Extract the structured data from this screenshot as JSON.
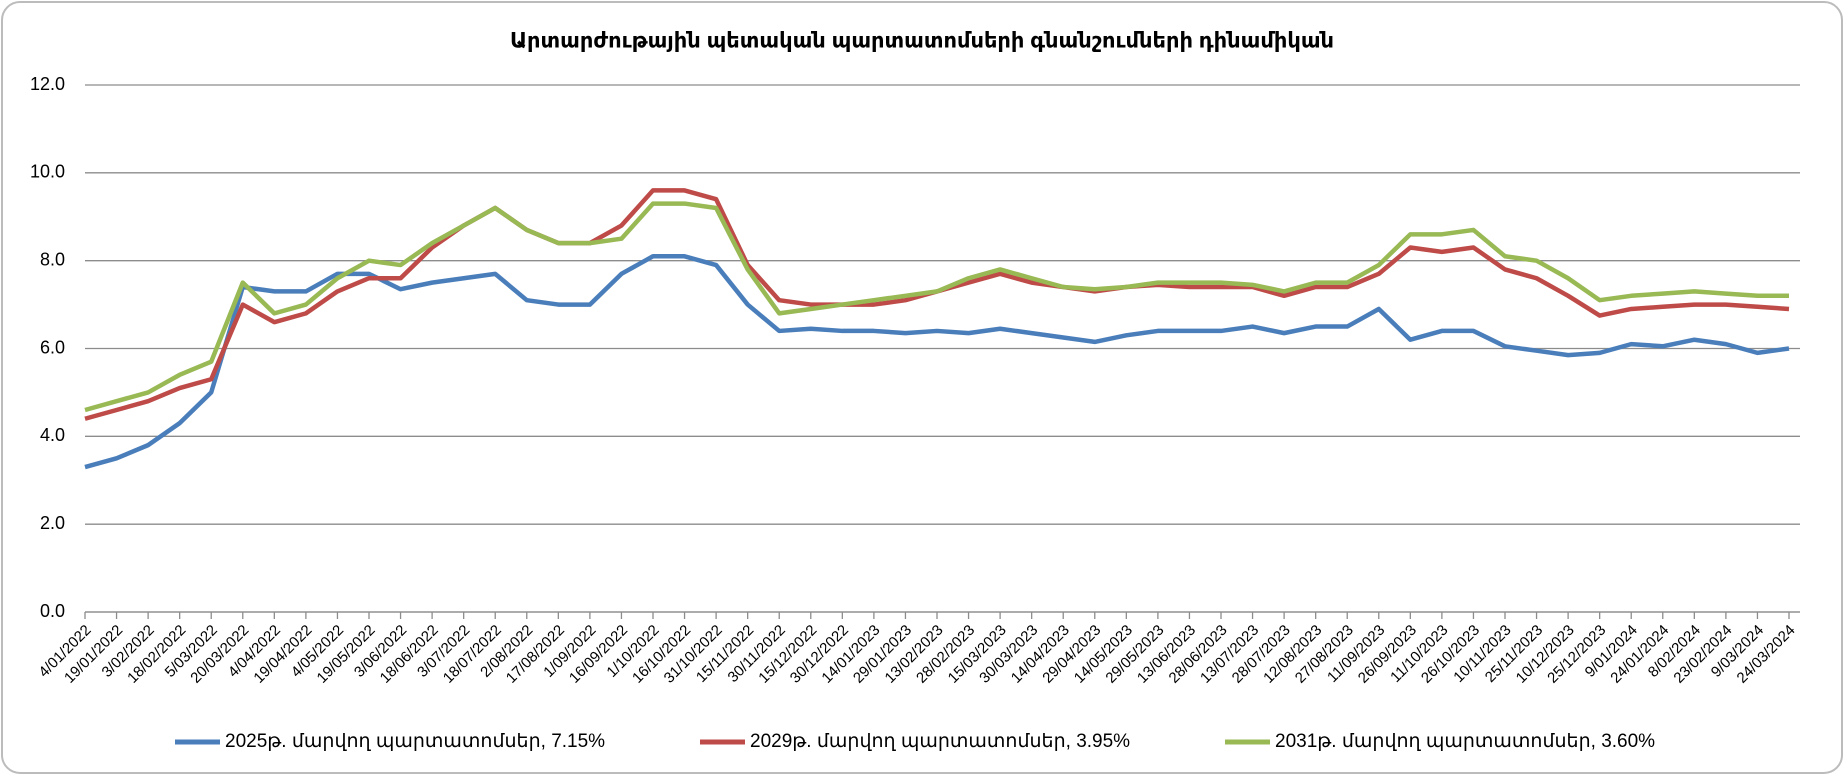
{
  "chart_data": {
    "type": "line",
    "title": "Արտարժութային պետական պարտատոմսերի գնանշումների դինամիկան",
    "categories": [
      "4/01/2022",
      "19/01/2022",
      "3/02/2022",
      "18/02/2022",
      "5/03/2022",
      "20/03/2022",
      "4/04/2022",
      "19/04/2022",
      "4/05/2022",
      "19/05/2022",
      "3/06/2022",
      "18/06/2022",
      "3/07/2022",
      "18/07/2022",
      "2/08/2022",
      "17/08/2022",
      "1/09/2022",
      "16/09/2022",
      "1/10/2022",
      "16/10/2022",
      "31/10/2022",
      "15/11/2022",
      "30/11/2022",
      "15/12/2022",
      "30/12/2022",
      "14/01/2023",
      "29/01/2023",
      "13/02/2023",
      "28/02/2023",
      "15/03/2023",
      "30/03/2023",
      "14/04/2023",
      "29/04/2023",
      "14/05/2023",
      "29/05/2023",
      "13/06/2023",
      "28/06/2023",
      "13/07/2023",
      "28/07/2023",
      "12/08/2023",
      "27/08/2023",
      "11/09/2023",
      "26/09/2023",
      "11/10/2023",
      "26/10/2023",
      "10/11/2023",
      "25/11/2023",
      "10/12/2023",
      "25/12/2023",
      "9/01/2024",
      "24/01/2024",
      "8/02/2024",
      "23/02/2024",
      "9/03/2024",
      "24/03/2024"
    ],
    "series": [
      {
        "name": "2025թ. մարվող պարտատոմսեր, 7.15%",
        "color": "#4a7ebb",
        "values": [
          3.3,
          3.5,
          3.8,
          4.3,
          5.0,
          7.4,
          7.3,
          7.3,
          7.7,
          7.7,
          7.35,
          7.5,
          7.6,
          7.7,
          7.1,
          7.0,
          7.0,
          7.7,
          8.1,
          8.1,
          7.9,
          7.0,
          6.4,
          6.45,
          6.4,
          6.4,
          6.35,
          6.4,
          6.35,
          6.45,
          6.35,
          6.25,
          6.15,
          6.3,
          6.4,
          6.4,
          6.4,
          6.5,
          6.35,
          6.5,
          6.5,
          6.9,
          6.2,
          6.4,
          6.4,
          6.05,
          5.95,
          5.85,
          5.9,
          6.1,
          6.05,
          6.2,
          6.1,
          5.9,
          6.0
        ]
      },
      {
        "name": "2029թ. մարվող պարտատոմսեր, 3.95%",
        "color": "#be4b48",
        "values": [
          4.4,
          4.6,
          4.8,
          5.1,
          5.3,
          7.0,
          6.6,
          6.8,
          7.3,
          7.6,
          7.6,
          8.3,
          8.8,
          9.2,
          8.7,
          8.4,
          8.4,
          8.8,
          9.6,
          9.6,
          9.4,
          7.9,
          7.1,
          7.0,
          7.0,
          7.0,
          7.1,
          7.3,
          7.5,
          7.7,
          7.5,
          7.4,
          7.3,
          7.4,
          7.45,
          7.4,
          7.4,
          7.4,
          7.2,
          7.4,
          7.4,
          7.7,
          8.3,
          8.2,
          8.3,
          7.8,
          7.6,
          7.2,
          6.75,
          6.9,
          6.95,
          7.0,
          7.0,
          6.95,
          6.9
        ]
      },
      {
        "name": "2031թ. մարվող պարտատոմսեր, 3.60%",
        "color": "#98b954",
        "values": [
          4.6,
          4.8,
          5.0,
          5.4,
          5.7,
          7.5,
          6.8,
          7.0,
          7.6,
          8.0,
          7.9,
          8.4,
          8.8,
          9.2,
          8.7,
          8.4,
          8.4,
          8.5,
          9.3,
          9.3,
          9.2,
          7.8,
          6.8,
          6.9,
          7.0,
          7.1,
          7.2,
          7.3,
          7.6,
          7.8,
          7.6,
          7.4,
          7.35,
          7.4,
          7.5,
          7.5,
          7.5,
          7.45,
          7.3,
          7.5,
          7.5,
          7.9,
          8.6,
          8.6,
          8.7,
          8.1,
          8.0,
          7.6,
          7.1,
          7.2,
          7.25,
          7.3,
          7.25,
          7.2,
          7.2
        ]
      }
    ],
    "ylim": [
      0,
      12
    ],
    "yticks": [
      {
        "value": 0,
        "label": "0.0"
      },
      {
        "value": 2,
        "label": "2.0"
      },
      {
        "value": 4,
        "label": "4.0"
      },
      {
        "value": 6,
        "label": "6.0"
      },
      {
        "value": 8,
        "label": "8.0"
      },
      {
        "value": 10,
        "label": "10.0"
      },
      {
        "value": 12,
        "label": "12.0"
      }
    ],
    "grid": true,
    "legend": "bottom"
  }
}
